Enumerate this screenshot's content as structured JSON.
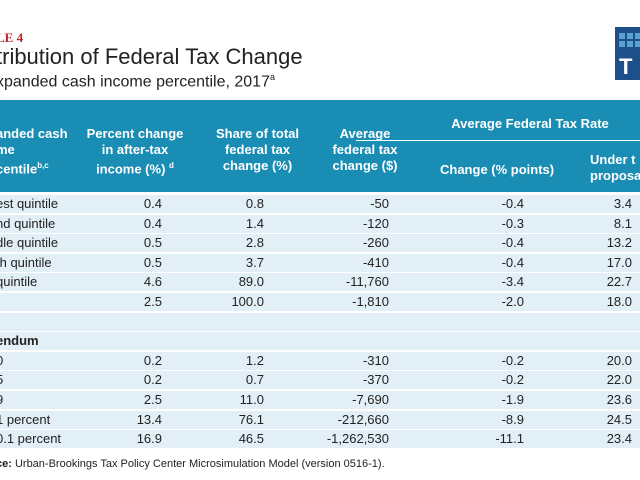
{
  "table_label": "LE 4",
  "title": "tribution of Federal Tax Change",
  "subtitle": "xpanded cash income percentile, 2017",
  "subtitle_sup": "a",
  "logo_letter": "T",
  "colors": {
    "header": "#1a8db4",
    "row": "#e2eff7",
    "label": "#c0272d",
    "logo": "#1d4f8a"
  },
  "headers": {
    "col0": [
      "anded cash",
      "me",
      "centile"
    ],
    "col0_sup": "b,c",
    "col1": [
      "Percent change",
      "in after-tax",
      "income (%)"
    ],
    "col1_sup": "d",
    "col2": [
      "Share of total",
      "federal tax",
      "change (%)"
    ],
    "col3": [
      "Average",
      "federal tax",
      "change ($)"
    ],
    "group": "Average Federal Tax Rate",
    "col4": "Change (% points)",
    "col5": [
      "Under t",
      "proposal"
    ]
  },
  "rows": [
    [
      "est quintile",
      "0.4",
      "0.8",
      "-50",
      "-0.4",
      "3.4"
    ],
    [
      "nd quintile",
      "0.4",
      "1.4",
      "-120",
      "-0.3",
      "8.1"
    ],
    [
      "dle quintile",
      "0.5",
      "2.8",
      "-260",
      "-0.4",
      "13.2"
    ],
    [
      "th quintile",
      "0.5",
      "3.7",
      "-410",
      "-0.4",
      "17.0"
    ],
    [
      "quintile",
      "4.6",
      "89.0",
      "-11,760",
      "-3.4",
      "22.7"
    ],
    [
      "",
      "2.5",
      "100.0",
      "-1,810",
      "-2.0",
      "18.0"
    ]
  ],
  "addendum_label": "endum",
  "addendum_rows": [
    [
      "0",
      "0.2",
      "1.2",
      "-310",
      "-0.2",
      "20.0"
    ],
    [
      "5",
      "0.2",
      "0.7",
      "-370",
      "-0.2",
      "22.0"
    ],
    [
      "9",
      "2.5",
      "11.0",
      "-7,690",
      "-1.9",
      "23.6"
    ],
    [
      "1 percent",
      "13.4",
      "76.1",
      "-212,660",
      "-8.9",
      "24.5"
    ],
    [
      "0.1 percent",
      "16.9",
      "46.5",
      "-1,262,530",
      "-11.1",
      "23.4"
    ]
  ],
  "source_label": "ce:",
  "source_text": " Urban-Brookings Tax Policy Center Microsimulation Model (version 0516-1)."
}
